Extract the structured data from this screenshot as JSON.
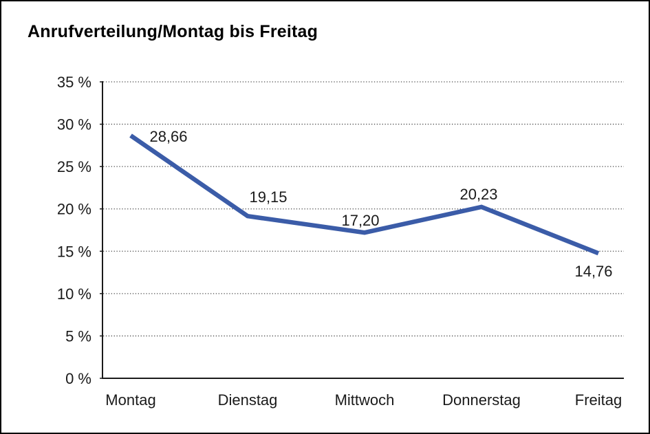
{
  "window": {
    "background": "#ffffff",
    "border_color": "#000000"
  },
  "chart_data": {
    "type": "line",
    "title": "Anrufverteilung/Montag bis Freitag",
    "categories": [
      "Montag",
      "Dienstag",
      "Mittwoch",
      "Donnerstag",
      "Freitag"
    ],
    "values": [
      28.66,
      19.15,
      17.2,
      20.23,
      14.76
    ],
    "point_labels": [
      "28,66",
      "19,15",
      "17,20",
      "20,23",
      "14,76"
    ],
    "series_name": "Anrufverteilung",
    "xlabel": "",
    "ylabel": "",
    "ylim": [
      0,
      35
    ],
    "ytick_step": 5,
    "ytick_labels": [
      "0 %",
      "5 %",
      "10 %",
      "15 %",
      "20 %",
      "25 %",
      "30 %",
      "35 %"
    ],
    "grid": "horizontal-dotted",
    "legend": "none",
    "line_color": "#3B5CA8",
    "grid_color": "#4a4a4a",
    "axis_color": "#1a1a1a",
    "text_color": "#1a1a1a"
  }
}
